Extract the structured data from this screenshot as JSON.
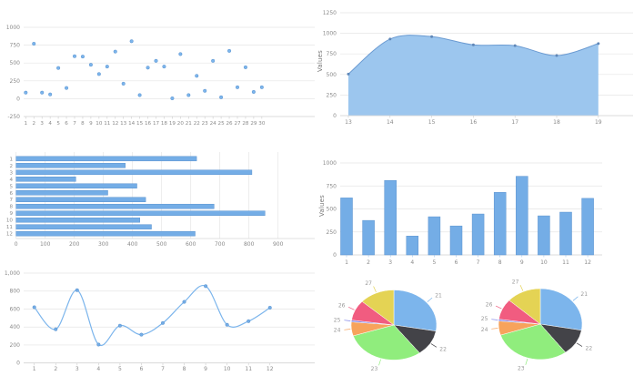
{
  "app": {
    "background": "#ffffff"
  },
  "palette": {
    "series_blue": "#7cb5ec",
    "bar_fill": "#74ade6",
    "bar_border": "#5b93cf",
    "area_fill": "#9cc6ee",
    "area_line": "#6b9bd2",
    "marker": "#5f87b8",
    "grid": "#e5e5e5",
    "axis_line": "#d6d6d6",
    "tick_text": "#8a8a8a",
    "axis_title": "#777777",
    "pie_label_text": "#999999"
  },
  "chart_data": [
    {
      "id": "scatter",
      "type": "scatter",
      "title": "",
      "x_labels": [
        "1",
        "2",
        "3",
        "4",
        "5",
        "6",
        "7",
        "8",
        "9",
        "10",
        "11",
        "12",
        "13",
        "14",
        "15",
        "16",
        "17",
        "18",
        "19",
        "20",
        "21",
        "22",
        "23",
        "24",
        "25",
        "26",
        "27",
        "28",
        "29",
        "30"
      ],
      "values": [
        85,
        770,
        85,
        60,
        430,
        150,
        595,
        590,
        475,
        345,
        450,
        660,
        210,
        805,
        50,
        435,
        530,
        450,
        5,
        625,
        50,
        320,
        110,
        530,
        20,
        670,
        160,
        440,
        95,
        160
      ],
      "ylim": [
        -250,
        1000
      ],
      "yticks": [
        1000,
        750,
        500,
        250,
        0,
        -250
      ],
      "ytick_labels": [
        "1000",
        "750",
        "500",
        "250",
        "0",
        "-250"
      ],
      "grid": true,
      "legend": "none"
    },
    {
      "id": "area",
      "type": "area",
      "ylabel": "Values",
      "categories": [
        "13",
        "14",
        "15",
        "16",
        "17",
        "18",
        "19"
      ],
      "values": [
        505,
        930,
        960,
        860,
        850,
        730,
        875
      ],
      "ylim": [
        0,
        1250
      ],
      "yticks": [
        1250,
        1000,
        750,
        500,
        250,
        0
      ],
      "ytick_labels": [
        "1250",
        "1000",
        "750",
        "500",
        "250",
        "0"
      ],
      "grid": true,
      "legend": "none"
    },
    {
      "id": "hbar",
      "type": "bar-horizontal",
      "categories": [
        "1",
        "2",
        "3",
        "4",
        "5",
        "6",
        "7",
        "8",
        "9",
        "10",
        "11",
        "12"
      ],
      "values": [
        620,
        375,
        810,
        205,
        415,
        315,
        445,
        680,
        855,
        425,
        465,
        615
      ],
      "xlim": [
        0,
        900
      ],
      "xticks": [
        0,
        100,
        200,
        300,
        400,
        500,
        600,
        700,
        800,
        900
      ],
      "xtick_labels": [
        "0",
        "100",
        "200",
        "300",
        "400",
        "500",
        "600",
        "700",
        "800",
        "900"
      ],
      "grid": true,
      "legend": "none"
    },
    {
      "id": "vbar",
      "type": "bar",
      "ylabel": "Values",
      "categories": [
        "1",
        "2",
        "3",
        "4",
        "5",
        "6",
        "7",
        "8",
        "9",
        "10",
        "11",
        "12"
      ],
      "values": [
        620,
        375,
        810,
        205,
        415,
        315,
        445,
        680,
        855,
        425,
        465,
        615
      ],
      "ylim": [
        0,
        1000
      ],
      "yticks": [
        1000,
        750,
        500,
        250,
        0
      ],
      "ytick_labels": [
        "1000",
        "750",
        "500",
        "250",
        "0"
      ],
      "grid": true,
      "legend": "none"
    },
    {
      "id": "line",
      "type": "line",
      "categories": [
        "1",
        "2",
        "3",
        "4",
        "5",
        "6",
        "7",
        "8",
        "9",
        "10",
        "11",
        "12"
      ],
      "values": [
        620,
        375,
        810,
        205,
        415,
        315,
        445,
        680,
        855,
        425,
        465,
        615
      ],
      "ylim": [
        0,
        1000
      ],
      "yticks": [
        1000,
        800,
        600,
        400,
        200,
        0
      ],
      "ytick_labels": [
        "1,000",
        "800",
        "600",
        "400",
        "200",
        "0"
      ],
      "grid": true,
      "legend": "none"
    },
    {
      "id": "pie-left",
      "type": "pie",
      "slices": [
        {
          "label": "21",
          "value": 100,
          "color": "#7cb5ec"
        },
        {
          "label": "22",
          "value": 43,
          "color": "#434348"
        },
        {
          "label": "23",
          "value": 109,
          "color": "#90ed7d"
        },
        {
          "label": "24",
          "value": 23,
          "color": "#f7a35c"
        },
        {
          "label": "25",
          "value": 3,
          "color": "#8085e9"
        },
        {
          "label": "26",
          "value": 34,
          "color": "#f15c80"
        },
        {
          "label": "27",
          "value": 48,
          "color": "#e4d354"
        }
      ]
    },
    {
      "id": "pie-right",
      "type": "pie",
      "slices": [
        {
          "label": "21",
          "value": 100,
          "color": "#7cb5ec"
        },
        {
          "label": "22",
          "value": 43,
          "color": "#434348"
        },
        {
          "label": "23",
          "value": 109,
          "color": "#90ed7d"
        },
        {
          "label": "24",
          "value": 23,
          "color": "#f7a35c"
        },
        {
          "label": "25",
          "value": 3,
          "color": "#8085e9"
        },
        {
          "label": "26",
          "value": 34,
          "color": "#f15c80"
        },
        {
          "label": "27",
          "value": 48,
          "color": "#e4d354"
        }
      ]
    }
  ]
}
